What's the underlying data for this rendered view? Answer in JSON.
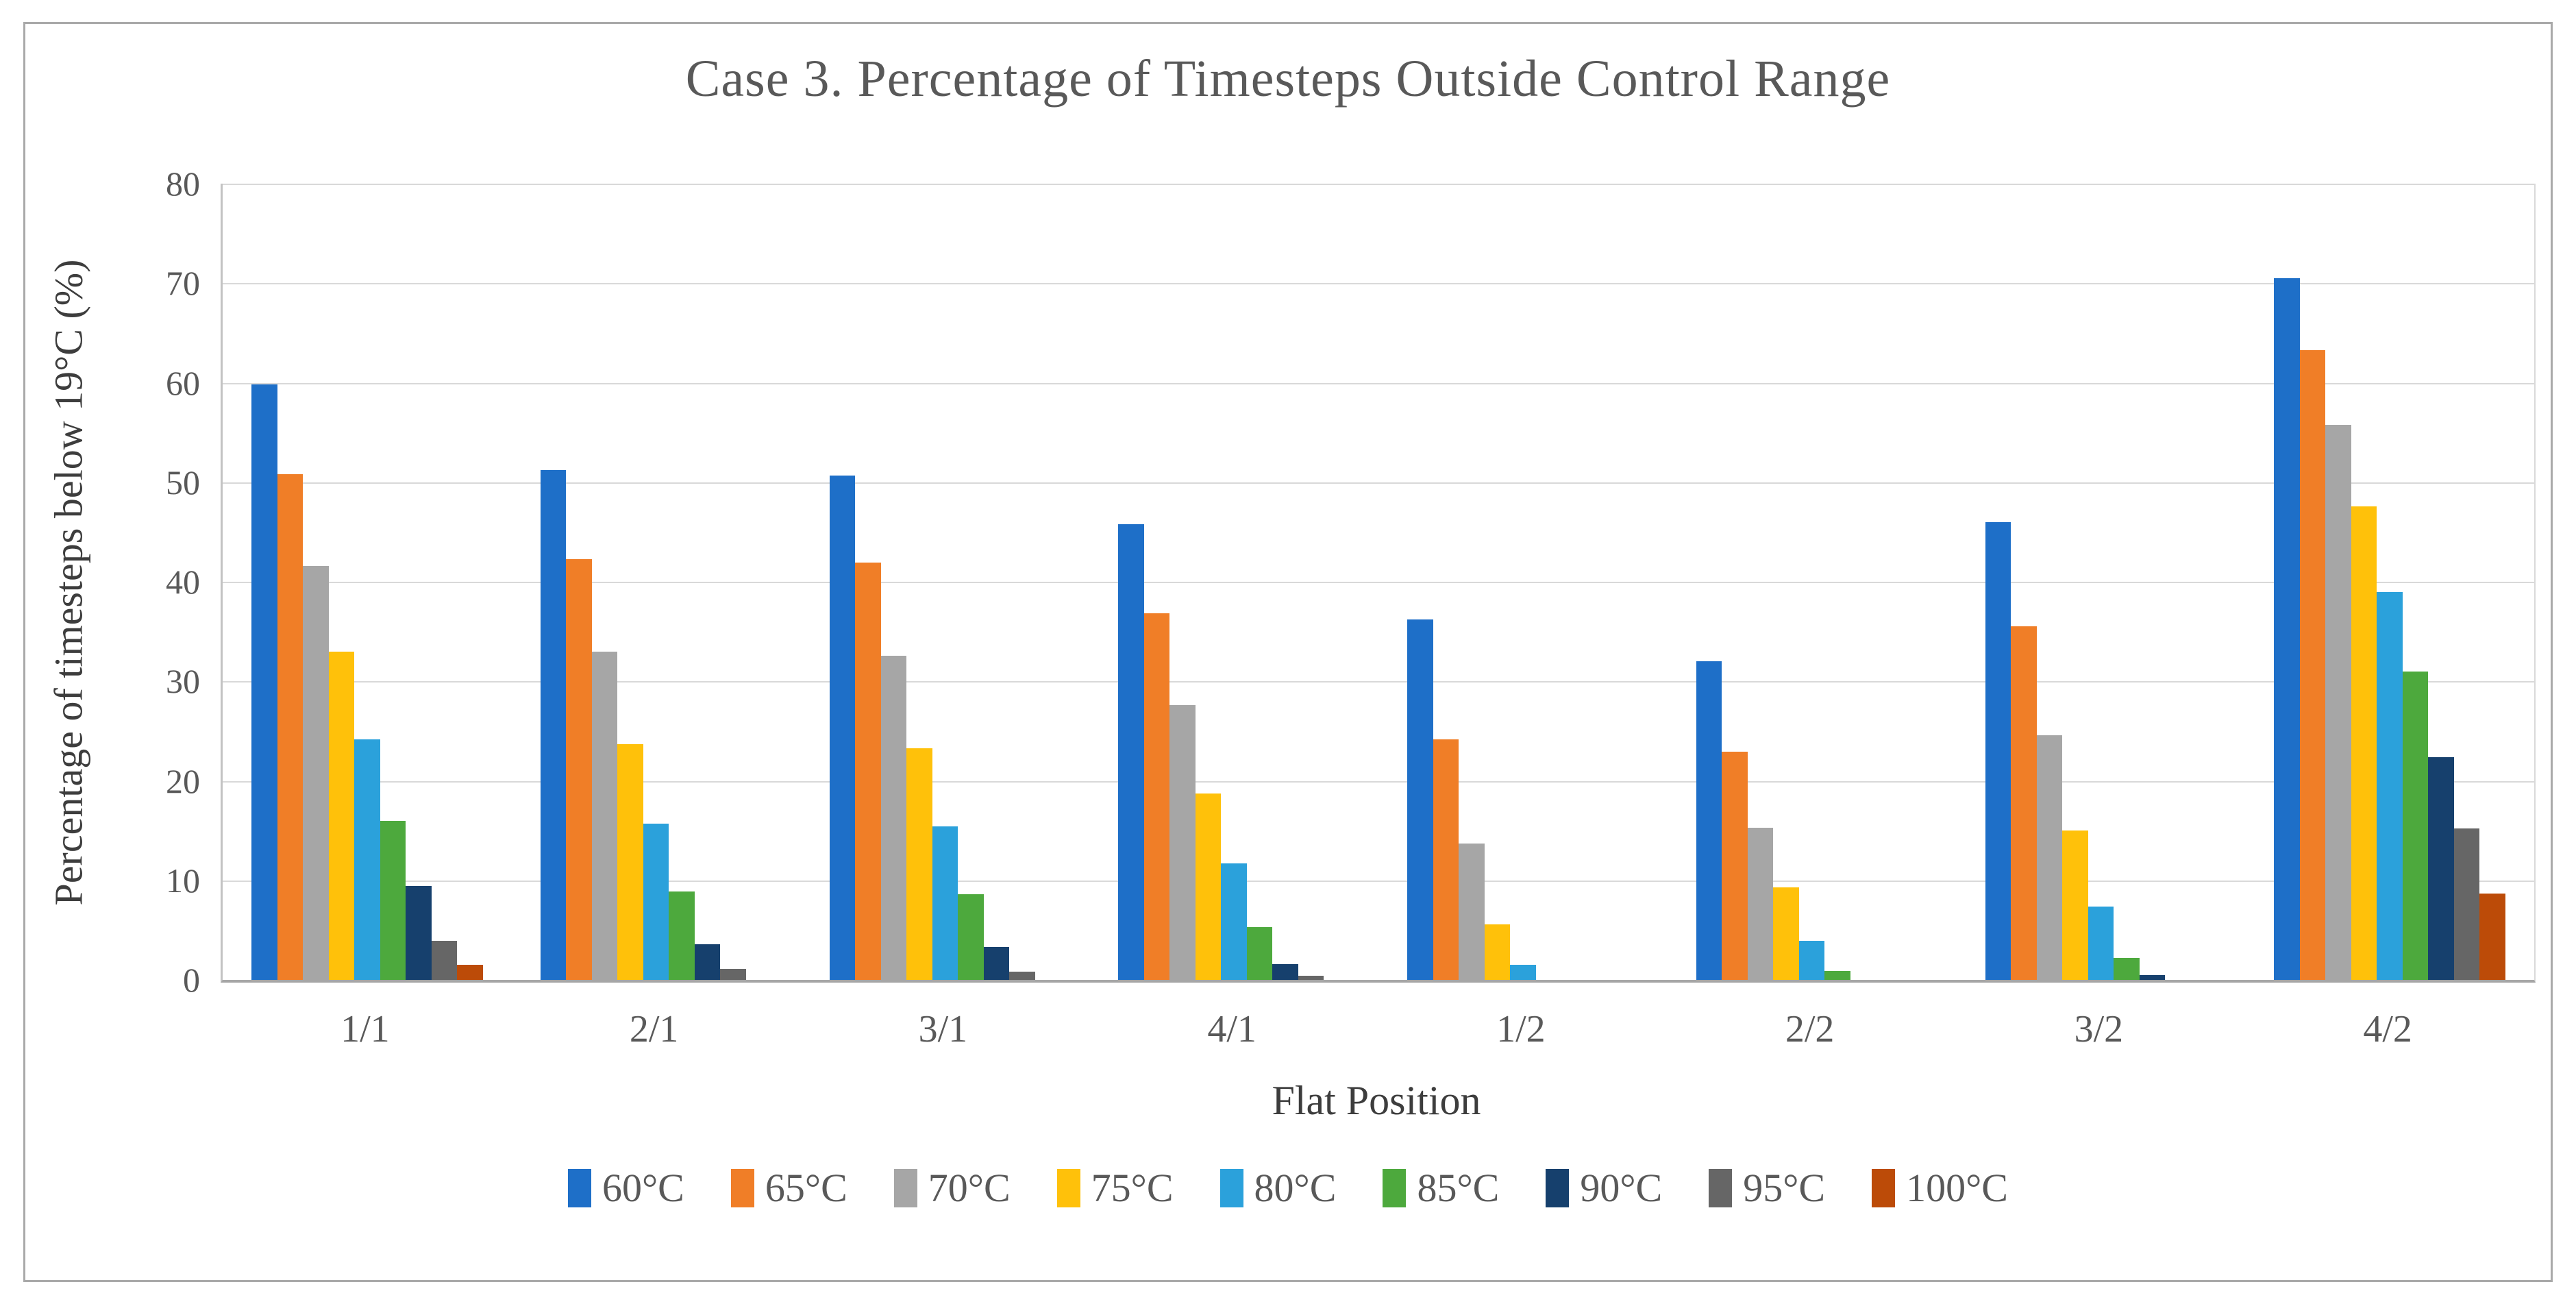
{
  "figure": {
    "background": "#ffffff",
    "frame_border_color": "#a9a9a9"
  },
  "chart_data": {
    "type": "bar",
    "title": "Case 3. Percentage of Timesteps Outside Control Range",
    "xlabel": "Flat Position",
    "ylabel": "Percentage of timesteps below 19°C (%)",
    "ylim": [
      0,
      80
    ],
    "yticks": [
      0,
      10,
      20,
      30,
      40,
      50,
      60,
      70,
      80
    ],
    "grid": true,
    "legend_position": "bottom",
    "categories": [
      "1/1",
      "2/1",
      "3/1",
      "4/1",
      "1/2",
      "2/2",
      "3/2",
      "4/2"
    ],
    "series": [
      {
        "name": "60°C",
        "color": "#1e6fc8",
        "values": [
          59.8,
          51.2,
          50.7,
          45.8,
          36.2,
          32.0,
          46.0,
          70.5
        ]
      },
      {
        "name": "65°C",
        "color": "#f07e27",
        "values": [
          50.8,
          42.3,
          41.9,
          36.8,
          24.2,
          22.9,
          35.5,
          63.3
        ]
      },
      {
        "name": "70°C",
        "color": "#a6a6a6",
        "values": [
          41.6,
          33.0,
          32.6,
          27.6,
          13.7,
          15.3,
          24.6,
          55.8
        ]
      },
      {
        "name": "75°C",
        "color": "#ffc10a",
        "values": [
          33.0,
          23.7,
          23.3,
          18.7,
          5.6,
          9.3,
          15.0,
          47.6
        ]
      },
      {
        "name": "80°C",
        "color": "#2ba1db",
        "values": [
          24.2,
          15.7,
          15.4,
          11.7,
          1.5,
          3.9,
          7.4,
          39.0
        ]
      },
      {
        "name": "85°C",
        "color": "#4da93d",
        "values": [
          16.0,
          8.9,
          8.6,
          5.3,
          0,
          0.9,
          2.2,
          31.0
        ]
      },
      {
        "name": "90°C",
        "color": "#16406d",
        "values": [
          9.4,
          3.6,
          3.3,
          1.6,
          0,
          0,
          0.5,
          22.4
        ]
      },
      {
        "name": "95°C",
        "color": "#666666",
        "values": [
          3.9,
          1.1,
          0.8,
          0.4,
          0,
          0,
          0,
          15.2
        ]
      },
      {
        "name": "100°C",
        "color": "#bc4b08",
        "values": [
          1.5,
          0,
          0,
          0,
          0,
          0,
          0,
          8.7
        ]
      }
    ]
  }
}
